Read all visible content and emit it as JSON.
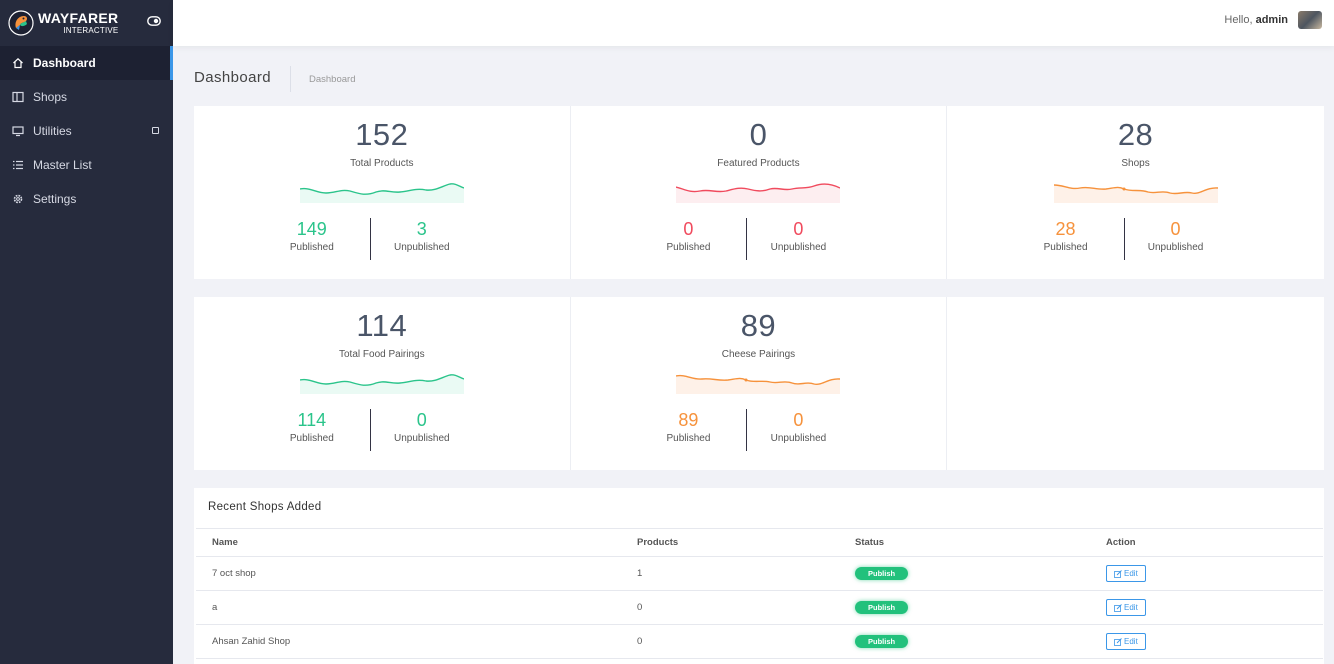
{
  "brand": {
    "name": "WAYFARER",
    "sub": "INTERACTIVE"
  },
  "sidebar": {
    "items": [
      {
        "label": "Dashboard",
        "icon": "home-icon"
      },
      {
        "label": "Shops",
        "icon": "columns-icon"
      },
      {
        "label": "Utilities",
        "icon": "monitor-icon"
      },
      {
        "label": "Master List",
        "icon": "list-icon"
      },
      {
        "label": "Settings",
        "icon": "gear-icon"
      }
    ]
  },
  "topbar": {
    "greeting": "Hello,",
    "user": "admin"
  },
  "page": {
    "title": "Dashboard",
    "breadcrumb": "Dashboard"
  },
  "stats": [
    {
      "value": "152",
      "label": "Total Products",
      "published": "149",
      "unpublished": "3",
      "color": "#2bc48b"
    },
    {
      "value": "0",
      "label": "Featured Products",
      "published": "0",
      "unpublished": "0",
      "color": "#f04a5d"
    },
    {
      "value": "28",
      "label": "Shops",
      "published": "28",
      "unpublished": "0",
      "color": "#f6923c"
    },
    {
      "value": "114",
      "label": "Total Food Pairings",
      "published": "114",
      "unpublished": "0",
      "color": "#2bc48b"
    },
    {
      "value": "89",
      "label": "Cheese Pairings",
      "published": "89",
      "unpublished": "0",
      "color": "#f6923c"
    }
  ],
  "captions": {
    "published": "Published",
    "unpublished": "Unpublished"
  },
  "recent": {
    "title": "Recent Shops Added",
    "headers": {
      "name": "Name",
      "products": "Products",
      "status": "Status",
      "action": "Action"
    },
    "rows": [
      {
        "name": "7 oct shop",
        "products": "1",
        "status": "Publish",
        "action": "Edit"
      },
      {
        "name": "a",
        "products": "0",
        "status": "Publish",
        "action": "Edit"
      },
      {
        "name": "Ahsan Zahid Shop",
        "products": "0",
        "status": "Publish",
        "action": "Edit"
      }
    ]
  }
}
